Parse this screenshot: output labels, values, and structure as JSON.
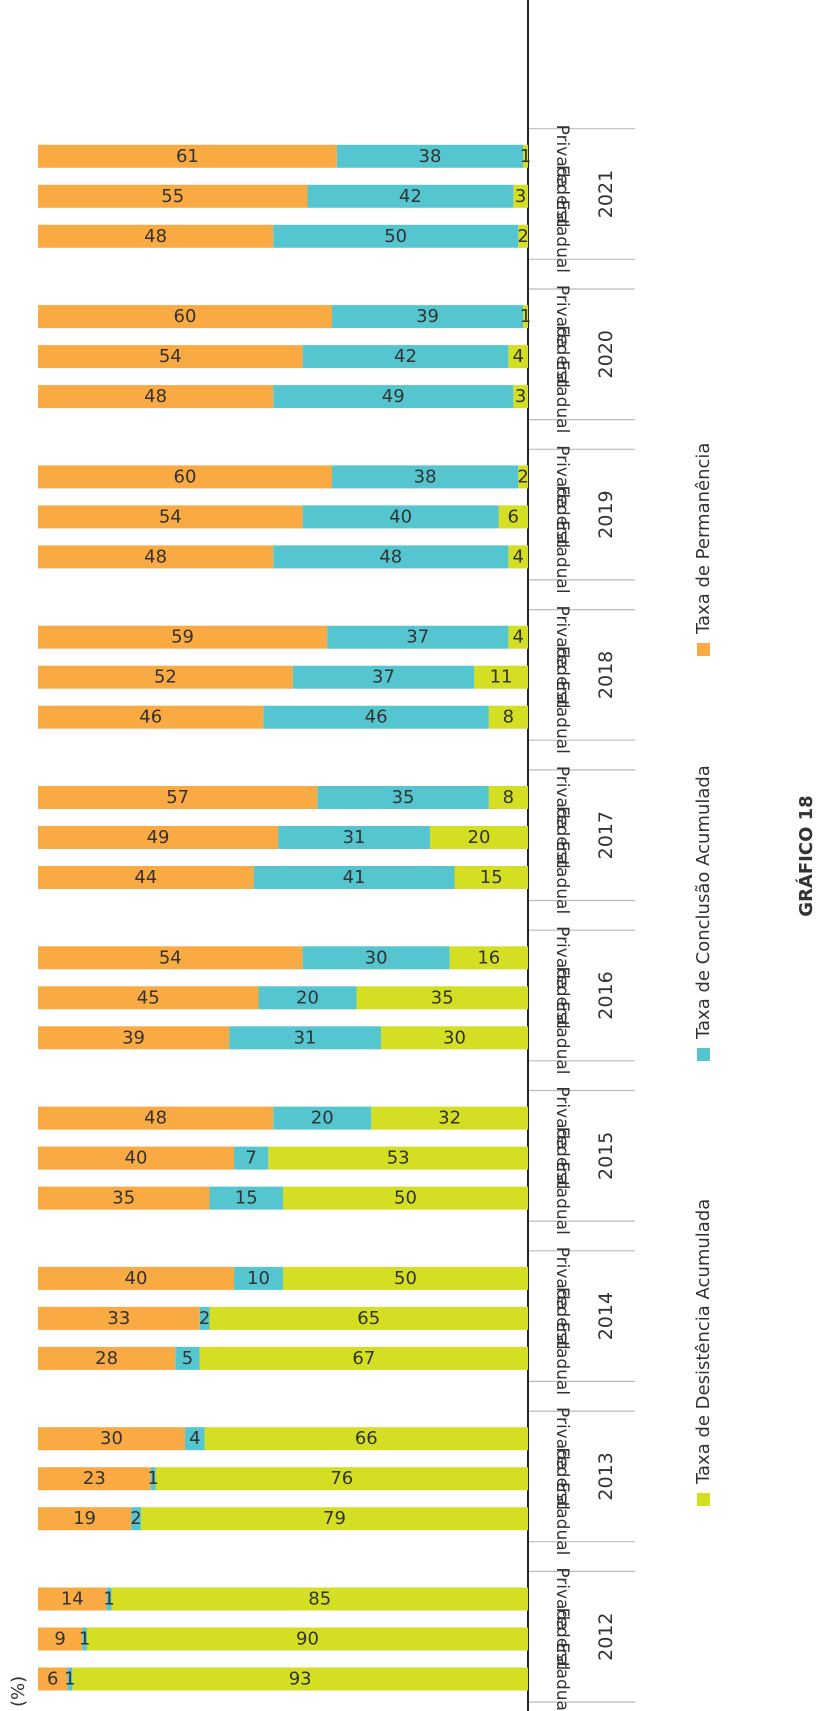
{
  "chart_data": {
    "type": "bar",
    "stacked": true,
    "orientation": "horizontal",
    "unit_label": "(%)",
    "caption": "GRÁFICO 18",
    "legend_position": "bottom",
    "groups": [
      "2012",
      "2013",
      "2014",
      "2015",
      "2016",
      "2017",
      "2018",
      "2019",
      "2020",
      "2021"
    ],
    "categories": [
      "Estadual",
      "Federal",
      "Privada"
    ],
    "xlim": [
      0,
      100
    ],
    "series": [
      {
        "name": "Taxa de Desistência Acumulada",
        "color": "#d4de23",
        "values": [
          [
            93,
            90,
            85
          ],
          [
            79,
            76,
            66
          ],
          [
            67,
            65,
            50
          ],
          [
            50,
            53,
            32
          ],
          [
            30,
            35,
            16
          ],
          [
            15,
            20,
            8
          ],
          [
            8,
            11,
            4
          ],
          [
            4,
            6,
            2
          ],
          [
            3,
            4,
            1
          ],
          [
            2,
            3,
            1
          ]
        ]
      },
      {
        "name": "Taxa de Conclusão Acumulada",
        "color": "#55c6cf",
        "values": [
          [
            1,
            1,
            1
          ],
          [
            2,
            1,
            4
          ],
          [
            5,
            2,
            10
          ],
          [
            15,
            7,
            20
          ],
          [
            31,
            20,
            30
          ],
          [
            41,
            31,
            35
          ],
          [
            46,
            37,
            37
          ],
          [
            48,
            40,
            38
          ],
          [
            49,
            42,
            39
          ],
          [
            50,
            42,
            38
          ]
        ]
      },
      {
        "name": "Taxa de Permanência",
        "color": "#f9aa42",
        "values": [
          [
            6,
            9,
            14
          ],
          [
            19,
            23,
            30
          ],
          [
            28,
            33,
            40
          ],
          [
            35,
            40,
            48
          ],
          [
            39,
            45,
            54
          ],
          [
            44,
            49,
            57
          ],
          [
            46,
            52,
            59
          ],
          [
            48,
            54,
            60
          ],
          [
            48,
            54,
            60
          ],
          [
            48,
            55,
            61
          ]
        ]
      }
    ]
  }
}
